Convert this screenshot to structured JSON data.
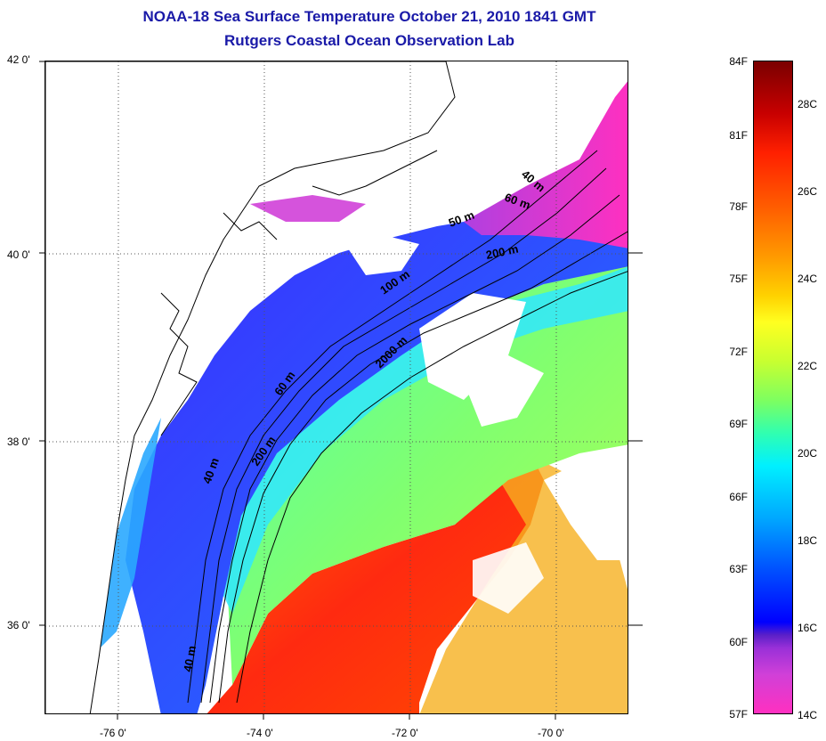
{
  "header": {
    "title_line1": "NOAA-18 Sea Surface Temperature October 21, 2010 1841 GMT",
    "title_line2": "Rutgers Coastal Ocean Observation Lab"
  },
  "axes": {
    "lat_labels": [
      "42 0'",
      "40 0'",
      "38 0'",
      "36 0'"
    ],
    "lon_labels": [
      "-76 0'",
      "-74 0'",
      "-72 0'",
      "-70 0'"
    ]
  },
  "contours": {
    "labels": [
      "40 m",
      "60 m",
      "50 m",
      "200 m",
      "100 m",
      "2000 m",
      "60 m",
      "200 m",
      "40 m",
      "40 m"
    ]
  },
  "colorbar": {
    "fahrenheit": [
      "84F",
      "81F",
      "78F",
      "75F",
      "72F",
      "69F",
      "66F",
      "63F",
      "60F",
      "57F"
    ],
    "celsius": [
      "28C",
      "26C",
      "24C",
      "22C",
      "20C",
      "18C",
      "16C",
      "14C"
    ]
  },
  "colors": {
    "title": "#1a1aa8",
    "warm": "#ff3a10",
    "cool": "#2850ff",
    "mid": "#70ff80",
    "cold": "#ff30c0"
  }
}
